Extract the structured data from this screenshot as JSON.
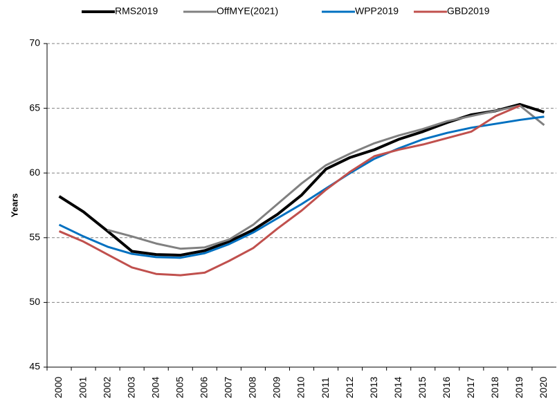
{
  "chart_data": {
    "type": "line",
    "categories": [
      "2000",
      "2001",
      "2002",
      "2003",
      "2004",
      "2005",
      "2006",
      "2007",
      "2008",
      "2009",
      "2010",
      "2011",
      "2012",
      "2013",
      "2014",
      "2015",
      "2016",
      "2017",
      "2018",
      "2019",
      "2020"
    ],
    "y_label": "Years",
    "ylim": [
      45,
      70
    ],
    "yticks": [
      45,
      50,
      55,
      60,
      65,
      70
    ],
    "grid": true,
    "legend": "top",
    "series": [
      {
        "name": "RMS2019",
        "color": "#000000",
        "values": [
          58.2,
          57.0,
          55.5,
          53.95,
          53.7,
          53.65,
          54.0,
          54.7,
          55.6,
          56.8,
          58.3,
          60.3,
          61.2,
          61.8,
          62.6,
          63.2,
          63.9,
          64.5,
          64.8,
          65.3,
          64.7
        ]
      },
      {
        "name": "OffMYE(2021)",
        "color": "#808080",
        "values": [
          null,
          null,
          55.6,
          55.1,
          54.55,
          54.15,
          54.25,
          54.85,
          56.0,
          57.6,
          59.2,
          60.6,
          61.5,
          62.3,
          62.9,
          63.4,
          64.0,
          64.4,
          64.8,
          65.2,
          63.7
        ]
      },
      {
        "name": "WPP2019",
        "color": "#0070c0",
        "values": [
          56.0,
          55.1,
          54.3,
          53.75,
          53.5,
          53.45,
          53.8,
          54.5,
          55.4,
          56.5,
          57.6,
          58.8,
          60.0,
          61.1,
          61.9,
          62.6,
          63.1,
          63.5,
          63.8,
          64.1,
          64.35
        ]
      },
      {
        "name": "GBD2019",
        "color": "#c0504d",
        "values": [
          55.5,
          54.7,
          53.7,
          52.7,
          52.2,
          52.1,
          52.3,
          53.2,
          54.2,
          55.7,
          57.1,
          58.7,
          60.1,
          61.3,
          61.8,
          62.2,
          62.7,
          63.2,
          64.4,
          65.2,
          null
        ]
      }
    ]
  }
}
